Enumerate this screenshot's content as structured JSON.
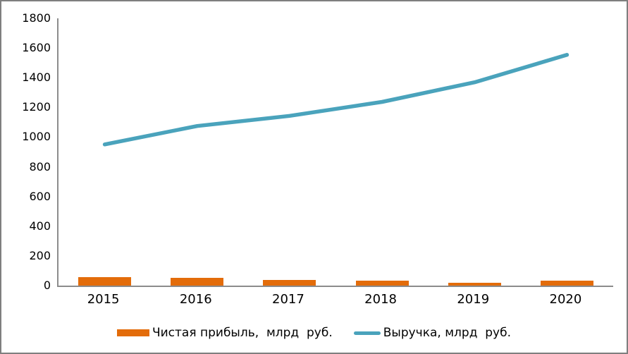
{
  "window": {
    "background": "#ffffff",
    "border_color": "#7f7f7f",
    "axis_color": "#8c8c8c",
    "text_color": "#000000"
  },
  "chart_data": {
    "type": "bar",
    "subtype": "combo-bar-line",
    "title": "",
    "xlabel": "",
    "ylabel": "",
    "categories": [
      "2015",
      "2016",
      "2017",
      "2018",
      "2019",
      "2020"
    ],
    "series": [
      {
        "name": "Чистая прибыль,  млрд  руб.",
        "type": "bar",
        "color": "#e36c0a",
        "values": [
          59,
          54,
          36,
          34,
          17,
          35
        ]
      },
      {
        "name": "Выручка, млрд  руб.",
        "type": "line",
        "color": "#4aa3bc",
        "values": [
          951,
          1075,
          1143,
          1237,
          1369,
          1554
        ]
      }
    ],
    "ylim": [
      0,
      1800
    ],
    "yticks": [
      0,
      200,
      400,
      600,
      800,
      1000,
      1200,
      1400,
      1600,
      1800
    ],
    "grid": false,
    "legend_position": "bottom"
  }
}
